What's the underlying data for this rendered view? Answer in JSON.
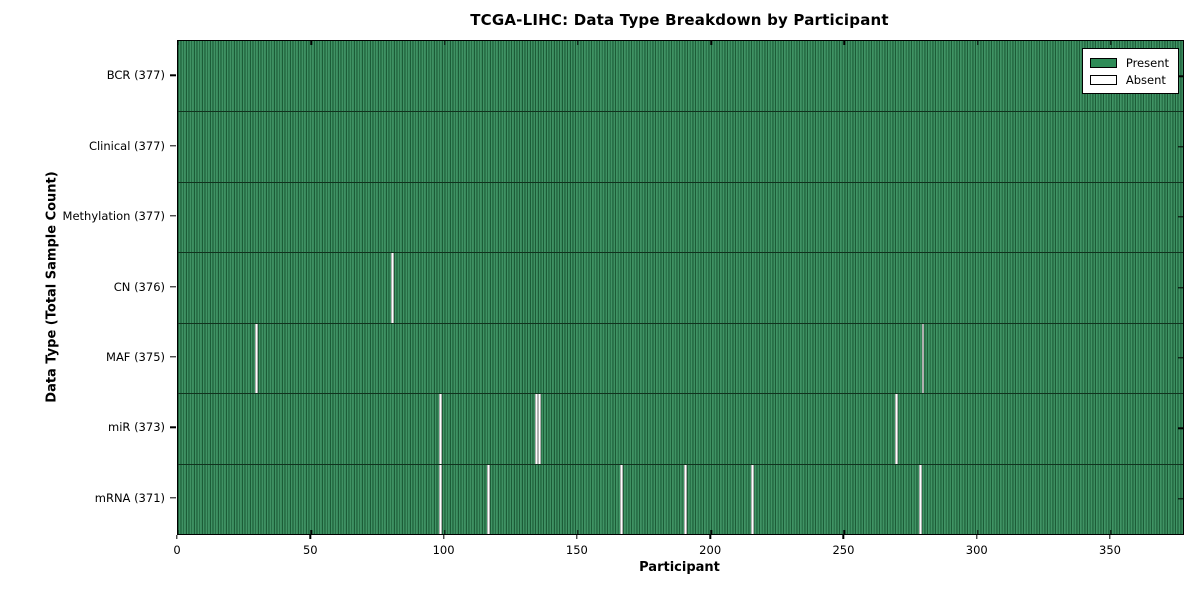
{
  "chart_data": {
    "type": "heatmap",
    "title": "TCGA-LIHC: Data Type Breakdown by Participant",
    "xlabel": "Participant",
    "ylabel": "Data Type (Total Sample Count)",
    "xlim": [
      0,
      377
    ],
    "x_ticks": [
      0,
      50,
      100,
      150,
      200,
      250,
      300,
      350
    ],
    "total_participants": 377,
    "grid": false,
    "legend_position": "upper right",
    "rows": [
      {
        "data_type": "BCR",
        "label": "BCR (377)",
        "present_count": 377,
        "absent_participants": []
      },
      {
        "data_type": "Clinical",
        "label": "Clinical (377)",
        "present_count": 377,
        "absent_participants": []
      },
      {
        "data_type": "Methylation",
        "label": "Methylation (377)",
        "present_count": 377,
        "absent_participants": []
      },
      {
        "data_type": "CN",
        "label": "CN (376)",
        "present_count": 376,
        "absent_participants": [
          80
        ]
      },
      {
        "data_type": "MAF",
        "label": "MAF (375)",
        "present_count": 375,
        "absent_participants": [
          29,
          279
        ]
      },
      {
        "data_type": "miR",
        "label": "miR (373)",
        "present_count": 373,
        "absent_participants": [
          98,
          134,
          135,
          269
        ]
      },
      {
        "data_type": "mRNA",
        "label": "mRNA (371)",
        "present_count": 371,
        "absent_participants": [
          98,
          116,
          166,
          190,
          215,
          278
        ]
      }
    ],
    "legend": [
      {
        "label": "Present",
        "color": "#2e8b57"
      },
      {
        "label": "Absent",
        "color": "#ffffff"
      }
    ],
    "colors": {
      "present_fill": "#2e8b57",
      "present_edge": "#1c5c37",
      "absent_fill": "#ffffff",
      "plot_border": "#000000",
      "background": "#ffffff"
    }
  }
}
